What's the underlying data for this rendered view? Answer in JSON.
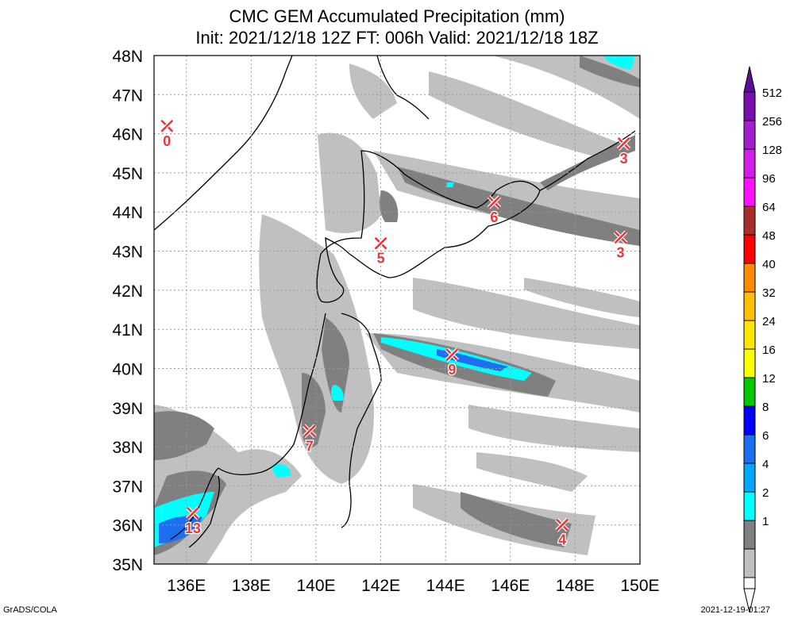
{
  "title": "CMC GEM Accumulated Precipitation (mm)",
  "subtitle": "Init: 2021/12/18 12Z  FT: 006h  Valid: 2021/12/18 18Z",
  "footer_left": "GrADS/COLA",
  "footer_right": "2021-12-19-01:27",
  "map": {
    "lat_range": [
      35,
      48
    ],
    "lon_range": [
      135,
      150
    ],
    "lat_labels": [
      "48N",
      "47N",
      "46N",
      "45N",
      "44N",
      "43N",
      "42N",
      "41N",
      "40N",
      "39N",
      "38N",
      "37N",
      "36N",
      "35N"
    ],
    "lon_labels": [
      "136E",
      "138E",
      "140E",
      "142E",
      "144E",
      "146E",
      "148E",
      "150E"
    ],
    "markers": [
      {
        "lon": 135.4,
        "lat": 46.2,
        "value": "0"
      },
      {
        "lon": 149.5,
        "lat": 45.75,
        "value": "3"
      },
      {
        "lon": 145.5,
        "lat": 44.25,
        "value": "6"
      },
      {
        "lon": 149.4,
        "lat": 43.35,
        "value": "3"
      },
      {
        "lon": 142.0,
        "lat": 43.2,
        "value": "5"
      },
      {
        "lon": 144.2,
        "lat": 40.35,
        "value": "9"
      },
      {
        "lon": 139.8,
        "lat": 38.4,
        "value": "7"
      },
      {
        "lon": 136.2,
        "lat": 36.3,
        "value": "13"
      },
      {
        "lon": 147.6,
        "lat": 36.0,
        "value": "4"
      }
    ]
  },
  "colorbar": {
    "labels": [
      "512",
      "256",
      "128",
      "96",
      "64",
      "48",
      "40",
      "32",
      "24",
      "16",
      "12",
      "8",
      "6",
      "4",
      "2",
      "1"
    ],
    "colors": [
      "#7a0fb0",
      "#a21ecf",
      "#d21ee8",
      "#ff10ff",
      "#a8302c",
      "#ff0000",
      "#ff8c00",
      "#ffbf00",
      "#ffe600",
      "#ffff00",
      "#00c800",
      "#0000ff",
      "#1e6ef0",
      "#00a8ff",
      "#00ffff",
      "#808080",
      "#c0c0c0",
      "#ffffff"
    ],
    "top_color": "#5a0f98"
  }
}
